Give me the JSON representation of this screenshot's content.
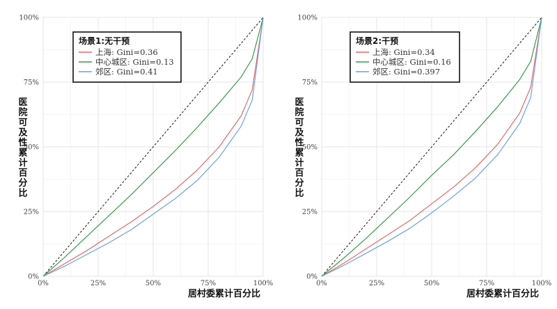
{
  "chart_data": [
    {
      "type": "line",
      "title": "",
      "legend_title": "场景1:无干预",
      "xlabel": "居村委累计百分比",
      "ylabel": "医院可及性累计百分比",
      "xlim": [
        0,
        1
      ],
      "ylim": [
        0,
        1
      ],
      "x_ticks": [
        "0%",
        "25%",
        "50%",
        "75%",
        "100%"
      ],
      "y_ticks": [
        "0%",
        "25%",
        "50%",
        "75%",
        "100%"
      ],
      "legend_position": "top-left",
      "grid": true,
      "equality_line": true,
      "x": [
        0,
        0.1,
        0.2,
        0.3,
        0.4,
        0.5,
        0.6,
        0.7,
        0.8,
        0.9,
        0.95,
        1.0
      ],
      "series": [
        {
          "name": "上海: Gini=0.36",
          "color": "#e06a6a",
          "values": [
            0,
            0.05,
            0.1,
            0.155,
            0.21,
            0.27,
            0.335,
            0.41,
            0.5,
            0.62,
            0.72,
            1.0
          ]
        },
        {
          "name": "中心城区: Gini=0.13",
          "color": "#3a9a48",
          "values": [
            0,
            0.075,
            0.155,
            0.235,
            0.315,
            0.4,
            0.485,
            0.575,
            0.67,
            0.77,
            0.84,
            1.0
          ]
        },
        {
          "name": "郊区: Gini=0.41",
          "color": "#6fa0de",
          "values": [
            0,
            0.04,
            0.085,
            0.13,
            0.18,
            0.24,
            0.3,
            0.37,
            0.46,
            0.58,
            0.68,
            1.0
          ]
        }
      ]
    },
    {
      "type": "line",
      "title": "",
      "legend_title": "场景2:干预",
      "xlabel": "居村委累计百分比",
      "ylabel": "医院可及性累计百分比",
      "xlim": [
        0,
        1
      ],
      "ylim": [
        0,
        1
      ],
      "x_ticks": [
        "0%",
        "25%",
        "50%",
        "75%",
        "100%"
      ],
      "y_ticks": [
        "0%",
        "25%",
        "50%",
        "75%",
        "100%"
      ],
      "legend_position": "top-left",
      "grid": true,
      "equality_line": true,
      "x": [
        0,
        0.1,
        0.2,
        0.3,
        0.4,
        0.5,
        0.6,
        0.7,
        0.8,
        0.9,
        0.95,
        1.0
      ],
      "series": [
        {
          "name": "上海: Gini=0.34",
          "color": "#e06a6a",
          "values": [
            0,
            0.05,
            0.105,
            0.16,
            0.215,
            0.28,
            0.345,
            0.42,
            0.51,
            0.63,
            0.73,
            1.0
          ]
        },
        {
          "name": "中心城区: Gini=0.16",
          "color": "#3a9a48",
          "values": [
            0,
            0.07,
            0.145,
            0.225,
            0.305,
            0.39,
            0.47,
            0.56,
            0.655,
            0.76,
            0.83,
            1.0
          ]
        },
        {
          "name": "郊区: Gini=0.397",
          "color": "#6fa0de",
          "values": [
            0,
            0.042,
            0.088,
            0.135,
            0.185,
            0.245,
            0.31,
            0.38,
            0.47,
            0.59,
            0.69,
            1.0
          ]
        }
      ]
    }
  ]
}
